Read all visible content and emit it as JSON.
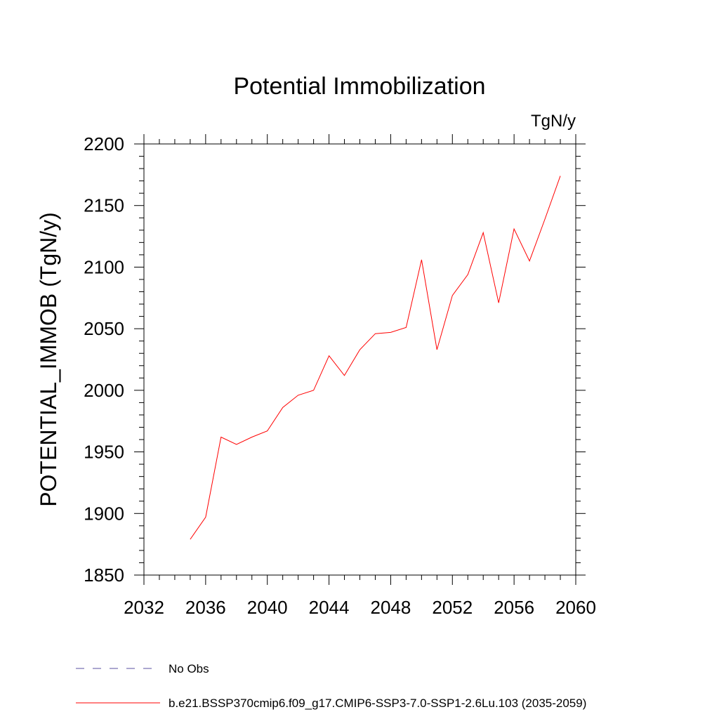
{
  "chart_data": {
    "type": "line",
    "title": "Potential Immobilization",
    "units_label": "TgN/y",
    "xlabel": "",
    "ylabel": "POTENTIAL_IMMOB  (TgN/y)",
    "xlim": [
      2032,
      2060
    ],
    "ylim": [
      1850,
      2200
    ],
    "x_ticks": [
      2032,
      2036,
      2040,
      2044,
      2048,
      2052,
      2056,
      2060
    ],
    "y_ticks": [
      1850,
      1900,
      1950,
      2000,
      2050,
      2100,
      2150,
      2200
    ],
    "series": [
      {
        "name": "b.e21.BSSP370cmip6.f09_g17.CMIP6-SSP3-7.0-SSP1-2.6Lu.103 (2035-2059)",
        "color": "#ff0000",
        "x": [
          2035,
          2036,
          2037,
          2038,
          2039,
          2040,
          2041,
          2042,
          2043,
          2044,
          2045,
          2046,
          2047,
          2048,
          2049,
          2050,
          2051,
          2052,
          2053,
          2054,
          2055,
          2056,
          2057,
          2058,
          2059
        ],
        "y": [
          1879,
          1897,
          1962,
          1956,
          1962,
          1967,
          1986,
          1996,
          2000,
          2028,
          2012,
          2033,
          2046,
          2047,
          2051,
          2106,
          2033,
          2077,
          2094,
          2128,
          2071,
          2131,
          2105,
          2139,
          2174
        ]
      }
    ],
    "legend": [
      {
        "label": "No Obs",
        "style": "dashed",
        "color": "#5a4fa0"
      },
      {
        "label": "b.e21.BSSP370cmip6.f09_g17.CMIP6-SSP3-7.0-SSP1-2.6Lu.103 (2035-2059)",
        "style": "solid",
        "color": "#ff0000"
      }
    ]
  }
}
